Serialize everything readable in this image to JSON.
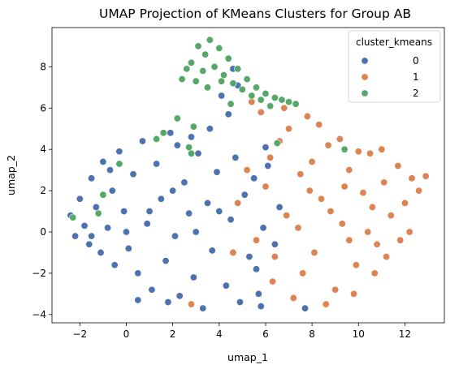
{
  "chart_data": {
    "type": "scatter",
    "title": "UMAP Projection of KMeans Clusters for Group AB",
    "xlabel": "umap_1",
    "ylabel": "umap_2",
    "xlim": [
      -3.2,
      13.7
    ],
    "ylim": [
      -4.4,
      9.9
    ],
    "xticks": [
      -2,
      0,
      2,
      4,
      6,
      8,
      10,
      12
    ],
    "yticks": [
      -4,
      -2,
      0,
      2,
      4,
      6,
      8
    ],
    "xtick_labels": [
      "−2",
      "0",
      "2",
      "4",
      "6",
      "8",
      "10",
      "12"
    ],
    "ytick_labels": [
      "−4",
      "−2",
      "0",
      "2",
      "4",
      "6",
      "8"
    ],
    "grid": false,
    "legend": {
      "title": "cluster_kmeans",
      "placement": "top-right",
      "entries": [
        "0",
        "1",
        "2"
      ]
    },
    "series": [
      {
        "name": "0",
        "color": "#4c72b0",
        "points": [
          [
            -2.4,
            0.8
          ],
          [
            -2.2,
            -0.2
          ],
          [
            -2.0,
            1.6
          ],
          [
            -1.8,
            0.3
          ],
          [
            -1.6,
            -0.6
          ],
          [
            -1.5,
            2.6
          ],
          [
            -1.3,
            1.2
          ],
          [
            -1.1,
            -1.0
          ],
          [
            -1.0,
            3.4
          ],
          [
            -0.8,
            0.2
          ],
          [
            -0.6,
            2.0
          ],
          [
            -0.5,
            -1.6
          ],
          [
            -0.3,
            3.9
          ],
          [
            -0.1,
            1.0
          ],
          [
            0.1,
            -0.8
          ],
          [
            0.3,
            2.8
          ],
          [
            0.5,
            -2.0
          ],
          [
            0.7,
            4.4
          ],
          [
            0.9,
            0.4
          ],
          [
            1.1,
            -2.8
          ],
          [
            1.3,
            3.3
          ],
          [
            1.5,
            1.6
          ],
          [
            1.7,
            -1.4
          ],
          [
            1.9,
            4.8
          ],
          [
            2.1,
            -0.2
          ],
          [
            2.3,
            -3.1
          ],
          [
            2.5,
            2.4
          ],
          [
            2.7,
            0.9
          ],
          [
            2.9,
            -2.2
          ],
          [
            3.1,
            3.8
          ],
          [
            3.3,
            -3.7
          ],
          [
            3.5,
            1.4
          ],
          [
            3.7,
            -0.9
          ],
          [
            3.9,
            2.9
          ],
          [
            4.1,
            6.6
          ],
          [
            4.3,
            -2.6
          ],
          [
            4.5,
            0.6
          ],
          [
            4.7,
            3.6
          ],
          [
            4.9,
            -3.4
          ],
          [
            5.1,
            1.8
          ],
          [
            5.3,
            -1.2
          ],
          [
            5.5,
            2.6
          ],
          [
            5.7,
            -3.0
          ],
          [
            5.9,
            0.2
          ],
          [
            6.1,
            3.2
          ],
          [
            4.4,
            5.7
          ],
          [
            4.8,
            7.1
          ],
          [
            3.6,
            5.0
          ],
          [
            0.0,
            0.0
          ],
          [
            1.0,
            1.0
          ],
          [
            2.0,
            2.0
          ],
          [
            -1.5,
            -0.2
          ],
          [
            0.5,
            -3.3
          ],
          [
            2.8,
            4.6
          ],
          [
            5.6,
            -1.8
          ],
          [
            6.0,
            4.1
          ],
          [
            1.8,
            -3.4
          ],
          [
            4.0,
            1.0
          ],
          [
            3.0,
            0.0
          ],
          [
            -0.7,
            3.0
          ],
          [
            2.2,
            4.2
          ],
          [
            6.4,
            -0.6
          ],
          [
            6.6,
            1.2
          ],
          [
            4.6,
            7.9
          ],
          [
            5.8,
            -3.6
          ],
          [
            7.7,
            -3.7
          ]
        ]
      },
      {
        "name": "1",
        "color": "#dd8452",
        "points": [
          [
            4.8,
            1.4
          ],
          [
            5.2,
            3.0
          ],
          [
            5.6,
            -0.4
          ],
          [
            6.0,
            2.2
          ],
          [
            6.3,
            -2.4
          ],
          [
            6.6,
            4.4
          ],
          [
            6.9,
            0.8
          ],
          [
            7.2,
            -3.2
          ],
          [
            7.5,
            2.8
          ],
          [
            7.8,
            5.6
          ],
          [
            8.1,
            -1.0
          ],
          [
            8.4,
            1.6
          ],
          [
            8.7,
            4.2
          ],
          [
            9.0,
            -2.8
          ],
          [
            9.3,
            0.4
          ],
          [
            9.6,
            3.0
          ],
          [
            9.9,
            -1.6
          ],
          [
            10.2,
            1.9
          ],
          [
            10.5,
            3.8
          ],
          [
            10.8,
            -0.6
          ],
          [
            11.1,
            2.4
          ],
          [
            11.4,
            0.8
          ],
          [
            11.7,
            3.2
          ],
          [
            12.0,
            1.4
          ],
          [
            12.3,
            2.6
          ],
          [
            12.6,
            2.0
          ],
          [
            12.9,
            2.7
          ],
          [
            11.8,
            -0.4
          ],
          [
            10.7,
            -2.0
          ],
          [
            9.8,
            -3.0
          ],
          [
            8.6,
            -3.5
          ],
          [
            7.9,
            2.0
          ],
          [
            7.0,
            5.0
          ],
          [
            8.3,
            5.2
          ],
          [
            9.2,
            4.5
          ],
          [
            10.0,
            3.9
          ],
          [
            6.4,
            -1.2
          ],
          [
            7.4,
            0.2
          ],
          [
            8.8,
            1.0
          ],
          [
            9.6,
            -0.4
          ],
          [
            10.4,
            0.0
          ],
          [
            11.2,
            -1.2
          ],
          [
            5.8,
            5.8
          ],
          [
            6.2,
            3.6
          ],
          [
            7.6,
            -2.0
          ],
          [
            8.0,
            3.4
          ],
          [
            9.4,
            2.2
          ],
          [
            11.0,
            4.0
          ],
          [
            2.8,
            -3.5
          ],
          [
            4.6,
            -1.0
          ],
          [
            5.4,
            6.3
          ],
          [
            6.8,
            6.0
          ],
          [
            10.6,
            1.2
          ],
          [
            12.2,
            0.0
          ]
        ]
      },
      {
        "name": "2",
        "color": "#55a868",
        "points": [
          [
            2.8,
            8.2
          ],
          [
            3.1,
            9.0
          ],
          [
            3.4,
            8.6
          ],
          [
            3.6,
            9.3
          ],
          [
            3.8,
            8.0
          ],
          [
            4.0,
            8.9
          ],
          [
            4.2,
            7.6
          ],
          [
            4.4,
            8.4
          ],
          [
            4.6,
            7.2
          ],
          [
            4.8,
            7.9
          ],
          [
            5.0,
            6.9
          ],
          [
            5.2,
            7.4
          ],
          [
            5.4,
            6.6
          ],
          [
            5.6,
            7.0
          ],
          [
            5.8,
            6.4
          ],
          [
            6.0,
            6.7
          ],
          [
            6.2,
            6.1
          ],
          [
            6.4,
            6.5
          ],
          [
            6.7,
            6.4
          ],
          [
            7.0,
            6.3
          ],
          [
            7.3,
            6.2
          ],
          [
            2.4,
            7.4
          ],
          [
            2.6,
            7.9
          ],
          [
            3.0,
            7.3
          ],
          [
            3.3,
            7.8
          ],
          [
            3.5,
            7.0
          ],
          [
            4.1,
            7.3
          ],
          [
            4.5,
            6.2
          ],
          [
            2.2,
            5.5
          ],
          [
            1.6,
            4.8
          ],
          [
            1.3,
            4.5
          ],
          [
            2.9,
            5.1
          ],
          [
            2.7,
            4.1
          ],
          [
            2.8,
            3.8
          ],
          [
            -0.3,
            3.3
          ],
          [
            -1.2,
            0.9
          ],
          [
            -2.3,
            0.7
          ],
          [
            -1.0,
            1.8
          ],
          [
            9.4,
            4.0
          ],
          [
            6.5,
            4.3
          ]
        ]
      }
    ]
  }
}
